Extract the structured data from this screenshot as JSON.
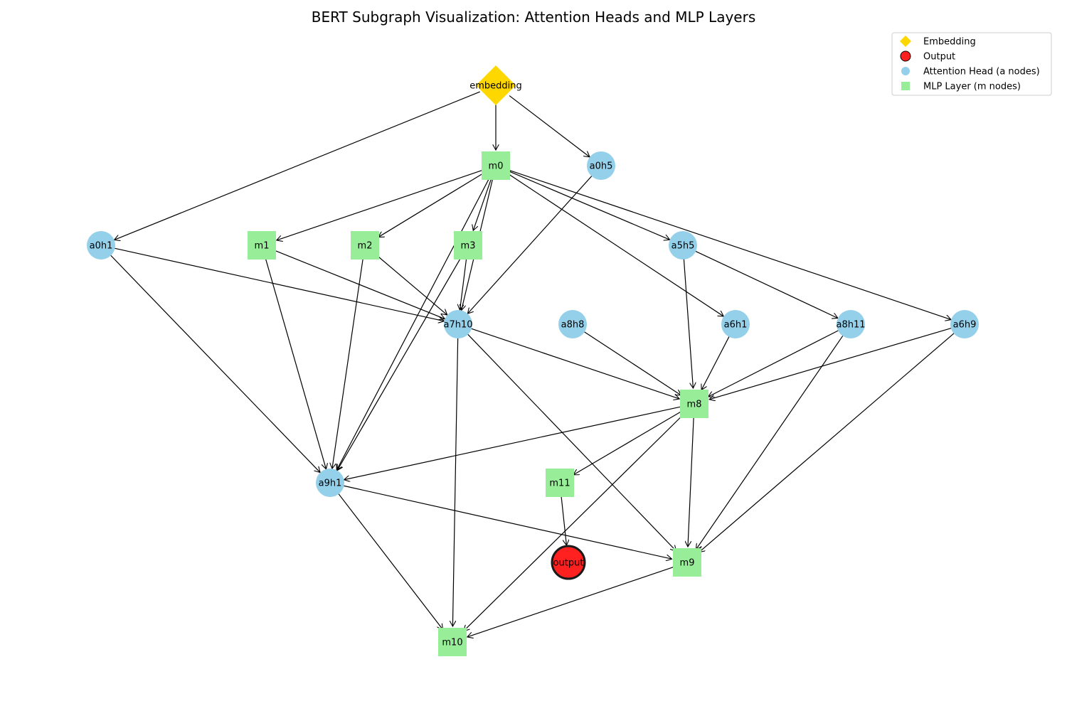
{
  "title": "BERT Subgraph Visualization: Attention Heads and MLP Layers",
  "colors": {
    "embedding": "#ffd700",
    "output": "#ff2020",
    "attention": "#95d0eb",
    "mlp": "#98ee98",
    "edge": "#000000",
    "output_border": "#1a1a1a"
  },
  "legend": [
    {
      "label": "Embedding",
      "shape": "diamond",
      "kind": "embedding"
    },
    {
      "label": "Output",
      "shape": "circle",
      "kind": "output"
    },
    {
      "label": "Attention Head (a nodes)",
      "shape": "circle",
      "kind": "attention"
    },
    {
      "label": "MLP Layer (m nodes)",
      "shape": "square",
      "kind": "mlp"
    }
  ],
  "nodes": [
    {
      "id": "embedding",
      "label": "embedding",
      "kind": "embedding"
    },
    {
      "id": "m0",
      "label": "m0",
      "kind": "mlp"
    },
    {
      "id": "a0h5",
      "label": "a0h5",
      "kind": "attention"
    },
    {
      "id": "a0h1",
      "label": "a0h1",
      "kind": "attention"
    },
    {
      "id": "m1",
      "label": "m1",
      "kind": "mlp"
    },
    {
      "id": "m2",
      "label": "m2",
      "kind": "mlp"
    },
    {
      "id": "m3",
      "label": "m3",
      "kind": "mlp"
    },
    {
      "id": "a5h5",
      "label": "a5h5",
      "kind": "attention"
    },
    {
      "id": "a7h10",
      "label": "a7h10",
      "kind": "attention"
    },
    {
      "id": "a8h8",
      "label": "a8h8",
      "kind": "attention"
    },
    {
      "id": "a6h1",
      "label": "a6h1",
      "kind": "attention"
    },
    {
      "id": "a8h11",
      "label": "a8h11",
      "kind": "attention"
    },
    {
      "id": "a6h9",
      "label": "a6h9",
      "kind": "attention"
    },
    {
      "id": "m8",
      "label": "m8",
      "kind": "mlp"
    },
    {
      "id": "a9h1",
      "label": "a9h1",
      "kind": "attention"
    },
    {
      "id": "m11",
      "label": "m11",
      "kind": "mlp"
    },
    {
      "id": "output",
      "label": "output",
      "kind": "output"
    },
    {
      "id": "m9",
      "label": "m9",
      "kind": "mlp"
    },
    {
      "id": "m10",
      "label": "m10",
      "kind": "mlp"
    }
  ],
  "edges": [
    [
      "embedding",
      "m0"
    ],
    [
      "embedding",
      "a0h5"
    ],
    [
      "embedding",
      "a0h1"
    ],
    [
      "m0",
      "m1"
    ],
    [
      "m0",
      "m2"
    ],
    [
      "m0",
      "m3"
    ],
    [
      "m0",
      "a7h10"
    ],
    [
      "m0",
      "a9h1"
    ],
    [
      "m0",
      "a5h5"
    ],
    [
      "m0",
      "a6h1"
    ],
    [
      "m0",
      "a6h9"
    ],
    [
      "a0h5",
      "a7h10"
    ],
    [
      "a0h1",
      "a7h10"
    ],
    [
      "a0h1",
      "a9h1"
    ],
    [
      "m1",
      "a7h10"
    ],
    [
      "m1",
      "a9h1"
    ],
    [
      "m2",
      "a7h10"
    ],
    [
      "m2",
      "a9h1"
    ],
    [
      "m3",
      "a7h10"
    ],
    [
      "m3",
      "a9h1"
    ],
    [
      "a5h5",
      "m8"
    ],
    [
      "a5h5",
      "a8h11"
    ],
    [
      "a7h10",
      "m8"
    ],
    [
      "a7h10",
      "m9"
    ],
    [
      "a7h10",
      "m10"
    ],
    [
      "a8h8",
      "m8"
    ],
    [
      "a6h1",
      "m8"
    ],
    [
      "a8h11",
      "m8"
    ],
    [
      "a8h11",
      "m9"
    ],
    [
      "a6h9",
      "m8"
    ],
    [
      "a6h9",
      "m9"
    ],
    [
      "m8",
      "a9h1"
    ],
    [
      "m8",
      "m11"
    ],
    [
      "m8",
      "m9"
    ],
    [
      "m8",
      "m10"
    ],
    [
      "a9h1",
      "m9"
    ],
    [
      "a9h1",
      "m10"
    ],
    [
      "m11",
      "output"
    ],
    [
      "m9",
      "m10"
    ]
  ]
}
